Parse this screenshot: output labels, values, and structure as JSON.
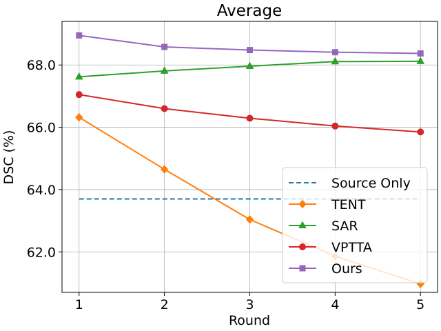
{
  "chart_data": {
    "type": "line",
    "title": "Average",
    "xlabel": "Round",
    "ylabel": "DSC (%)",
    "x": [
      1,
      2,
      3,
      4,
      5
    ],
    "xlim": [
      0.8,
      5.2
    ],
    "ylim": [
      60.7,
      69.4
    ],
    "yticks": [
      62.0,
      64.0,
      66.0,
      68.0
    ],
    "ytick_labels": [
      "62.0",
      "64.0",
      "66.0",
      "68.0"
    ],
    "xticks": [
      1,
      2,
      3,
      4,
      5
    ],
    "xtick_labels": [
      "1",
      "2",
      "3",
      "4",
      "5"
    ],
    "grid": true,
    "legend_position": "lower-right",
    "series": [
      {
        "name": "Source Only",
        "values": [
          63.7,
          63.7,
          63.7,
          63.7,
          63.7
        ],
        "color": "#1f77b4",
        "style": "dashed",
        "marker": "none"
      },
      {
        "name": "TENT",
        "values": [
          66.32,
          64.65,
          63.04,
          61.86,
          60.97
        ],
        "color": "#ff7f0e",
        "style": "solid",
        "marker": "diamond"
      },
      {
        "name": "SAR",
        "values": [
          67.62,
          67.81,
          67.96,
          68.11,
          68.12
        ],
        "color": "#2ca02c",
        "style": "solid",
        "marker": "triangle"
      },
      {
        "name": "VPTTA",
        "values": [
          67.05,
          66.6,
          66.29,
          66.04,
          65.85
        ],
        "color": "#d62728",
        "style": "solid",
        "marker": "circle"
      },
      {
        "name": "Ours",
        "values": [
          68.95,
          68.58,
          68.48,
          68.41,
          68.37
        ],
        "color": "#9467bd",
        "style": "solid",
        "marker": "square"
      }
    ]
  }
}
